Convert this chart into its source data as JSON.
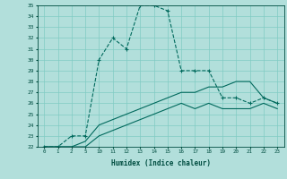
{
  "background_color": "#b2dfdb",
  "grid_color": "#80cbc4",
  "line_color": "#00695c",
  "ylim": [
    22,
    35
  ],
  "yticks": [
    22,
    23,
    24,
    25,
    26,
    27,
    28,
    29,
    30,
    31,
    32,
    33,
    34,
    35
  ],
  "xtick_labels": [
    "0",
    "1",
    "2",
    "5",
    "10",
    "11",
    "12",
    "13",
    "14",
    "15",
    "16",
    "17",
    "18",
    "19",
    "20",
    "21",
    "22",
    "23"
  ],
  "xlabel": "Humidex (Indice chaleur)",
  "line1_x": [
    0,
    1,
    2,
    3,
    4,
    5,
    6,
    7,
    8,
    9,
    10,
    11,
    12,
    13,
    14,
    15,
    16,
    17
  ],
  "line1_y": [
    22,
    22,
    23,
    23,
    30,
    32,
    31,
    35,
    35,
    34.5,
    29,
    29,
    29,
    26.5,
    26.5,
    26,
    26.5,
    26
  ],
  "line2_x": [
    0,
    1,
    2,
    3,
    4,
    5,
    6,
    7,
    8,
    9,
    10,
    11,
    12,
    13,
    14,
    15,
    16,
    17
  ],
  "line2_y": [
    22,
    22,
    22,
    22.5,
    24,
    24.5,
    25,
    25.5,
    26,
    26.5,
    27,
    27,
    27.5,
    27.5,
    28,
    28,
    26.5,
    26
  ],
  "line3_x": [
    0,
    1,
    2,
    3,
    4,
    5,
    6,
    7,
    8,
    9,
    10,
    11,
    12,
    13,
    14,
    15,
    16,
    17
  ],
  "line3_y": [
    22,
    22,
    22,
    22,
    23,
    23.5,
    24,
    24.5,
    25,
    25.5,
    26,
    25.5,
    26,
    25.5,
    25.5,
    25.5,
    26,
    25.5
  ],
  "marker_indices": [
    0,
    1,
    2,
    3,
    4,
    5,
    6,
    7,
    8,
    9,
    10,
    11,
    12,
    13,
    14,
    15,
    16,
    17
  ]
}
